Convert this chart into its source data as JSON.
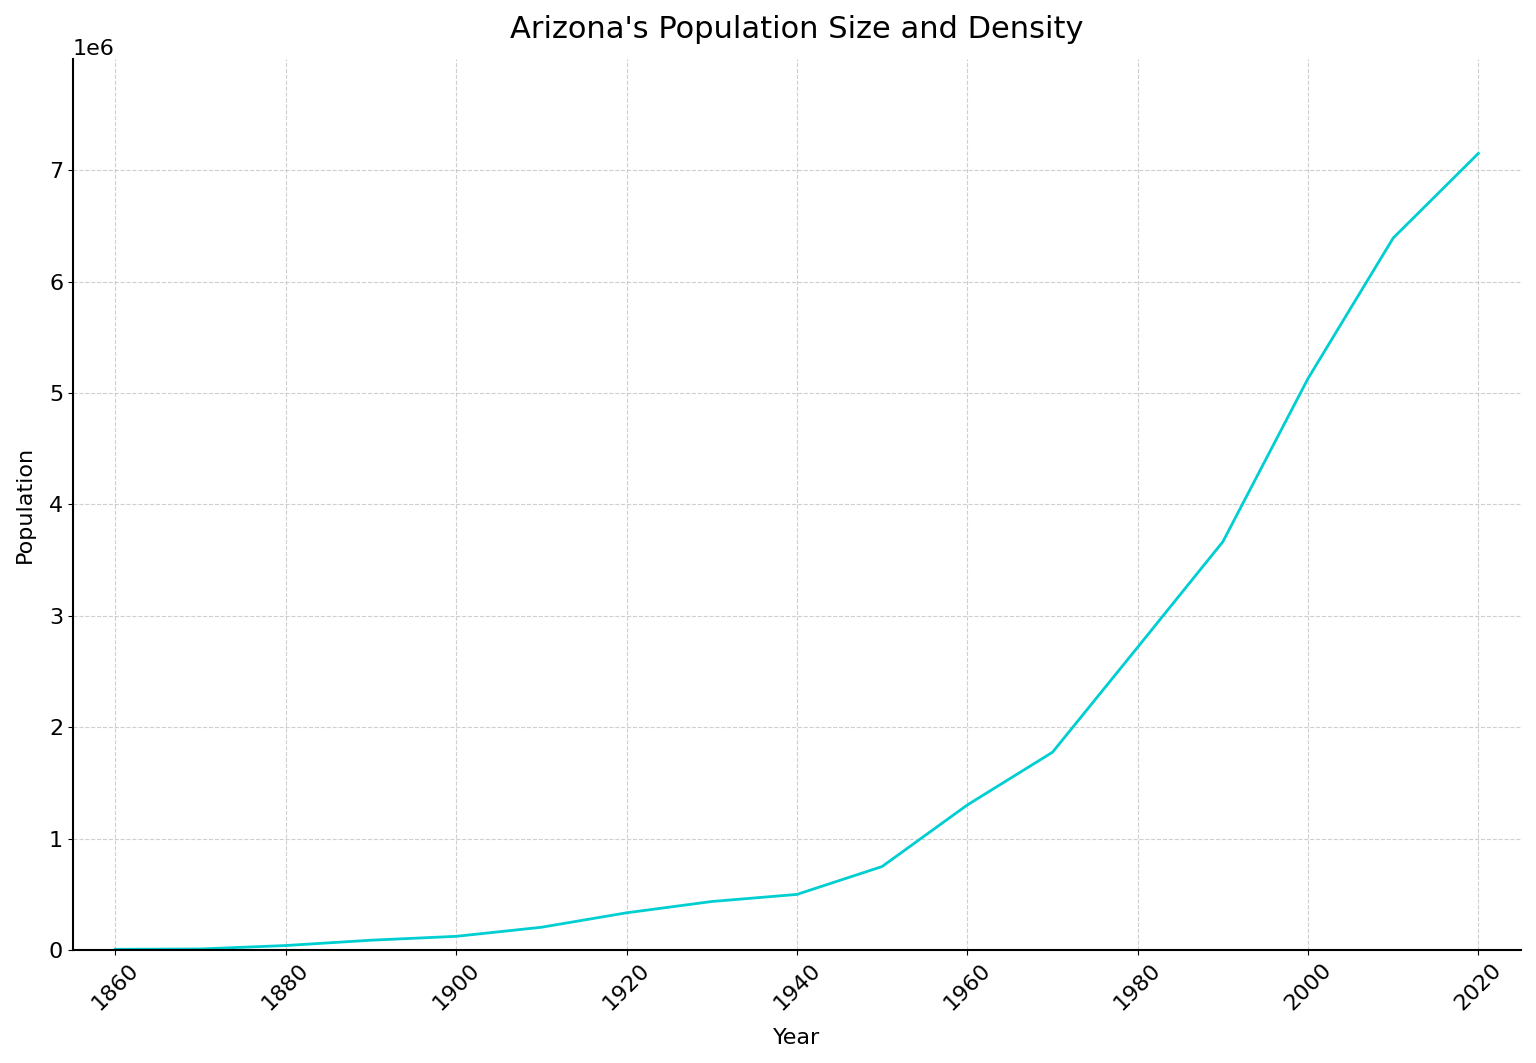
{
  "title": "Arizona's Population Size and Density",
  "xlabel": "Year",
  "ylabel": "Population",
  "line_color": "#00CED1",
  "background_color": "#ffffff",
  "years": [
    1860,
    1870,
    1880,
    1890,
    1900,
    1910,
    1920,
    1930,
    1940,
    1950,
    1960,
    1970,
    1980,
    1990,
    2000,
    2010,
    2020
  ],
  "population": [
    6482,
    9658,
    40440,
    88243,
    122931,
    204354,
    334162,
    435573,
    499261,
    749587,
    1302161,
    1775399,
    2718215,
    3665228,
    5130632,
    6392017,
    7151502
  ],
  "xlim": [
    1855,
    2025
  ],
  "ylim": [
    0,
    8000000
  ],
  "yticks": [
    0,
    1000000,
    2000000,
    3000000,
    4000000,
    5000000,
    6000000,
    7000000
  ],
  "xticks": [
    1860,
    1880,
    1900,
    1920,
    1940,
    1960,
    1980,
    2000,
    2020
  ],
  "title_fontsize": 22,
  "label_fontsize": 16,
  "tick_fontsize": 16,
  "line_width": 2.0,
  "grid_color": "#bbbbbb",
  "grid_style": "--",
  "grid_alpha": 0.7,
  "spine_color": "#000000"
}
